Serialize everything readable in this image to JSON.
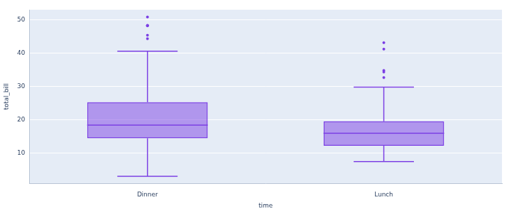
{
  "chart_data": {
    "type": "box",
    "x_label": "time",
    "y_label": "total_bill",
    "categories": [
      "Dinner",
      "Lunch"
    ],
    "boxes": [
      {
        "min": 3.07,
        "q1": 14.43,
        "median": 18.39,
        "q3": 25.28,
        "max": 40.55,
        "outliers": [
          44.3,
          45.35,
          48.17,
          48.27,
          48.33,
          50.81
        ]
      },
      {
        "min": 7.51,
        "q1": 12.24,
        "median": 15.97,
        "q3": 19.53,
        "max": 29.8,
        "outliers": [
          32.68,
          34.3,
          34.81,
          41.19,
          43.11
        ]
      }
    ],
    "color": "#7b3fe4",
    "ylim": [
      0.9,
      53
    ],
    "yticks": [
      10,
      20,
      30,
      40,
      50
    ],
    "grid": true,
    "tick_labels": true
  }
}
